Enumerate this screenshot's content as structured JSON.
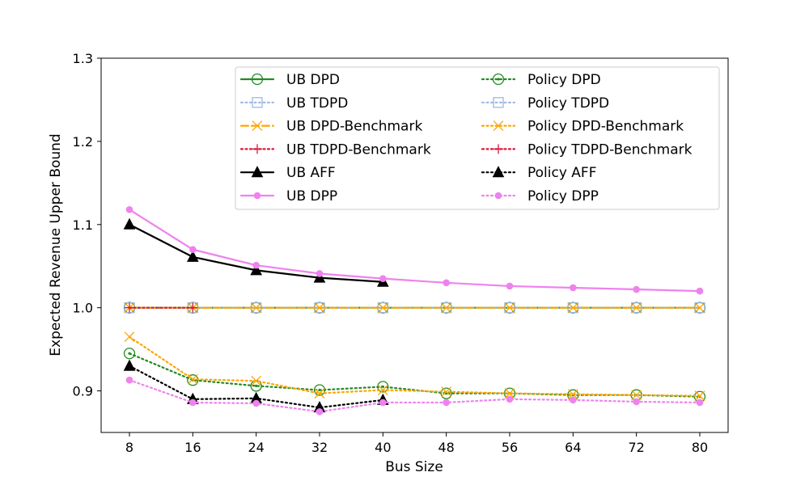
{
  "chart_data": {
    "type": "line",
    "xlabel": "Bus Size",
    "ylabel": "Expected Revenue Upper Bound",
    "x": [
      8,
      16,
      24,
      32,
      40,
      48,
      56,
      64,
      72,
      80
    ],
    "x_tick_labels": [
      "8",
      "16",
      "24",
      "32",
      "40",
      "48",
      "56",
      "64",
      "72",
      "80"
    ],
    "ylim": [
      0.85,
      1.3
    ],
    "y_ticks": [
      0.9,
      1.0,
      1.1,
      1.2,
      1.3
    ],
    "y_tick_labels": [
      "0.9",
      "1.0",
      "1.1",
      "1.2",
      "1.3"
    ],
    "grid": false,
    "legend_position": "upper-center",
    "legend_columns": 2,
    "series": [
      {
        "name": "UB DPD",
        "color": "#228b22",
        "linestyle": "solid",
        "marker": "circle-open",
        "values": [
          1.0,
          1.0,
          1.0,
          1.0,
          1.0,
          1.0,
          1.0,
          1.0,
          1.0,
          1.0
        ]
      },
      {
        "name": "UB TDPD",
        "color": "#9fb9e0",
        "linestyle": "dotted",
        "marker": "square-open",
        "values": [
          1.0,
          1.0,
          1.0,
          1.0,
          1.0,
          1.0,
          1.0,
          1.0,
          1.0,
          1.0
        ]
      },
      {
        "name": "UB DPD-Benchmark",
        "color": "#ffa500",
        "linestyle": "dashed",
        "marker": "x",
        "values": [
          1.0,
          1.0,
          1.0,
          1.0,
          1.0,
          1.0,
          1.0,
          1.0,
          1.0,
          1.0
        ]
      },
      {
        "name": "UB TDPD-Benchmark",
        "color": "#dc143c",
        "linestyle": "dotted",
        "marker": "plus",
        "values": [
          1.0,
          1.0,
          null,
          null,
          null,
          null,
          null,
          null,
          null,
          null
        ]
      },
      {
        "name": "UB AFF",
        "color": "#000000",
        "linestyle": "solid",
        "marker": "triangle-filled",
        "values": [
          1.1,
          1.061,
          1.045,
          1.036,
          1.031,
          null,
          null,
          null,
          null,
          null
        ]
      },
      {
        "name": "UB DPP",
        "color": "#ee82ee",
        "linestyle": "solid",
        "marker": "circle-filled",
        "values": [
          1.118,
          1.07,
          1.051,
          1.041,
          1.035,
          1.03,
          1.026,
          1.024,
          1.022,
          1.02
        ]
      },
      {
        "name": "Policy DPD",
        "color": "#228b22",
        "linestyle": "dotted",
        "marker": "circle-dot",
        "values": [
          0.945,
          0.913,
          0.906,
          0.901,
          0.905,
          0.897,
          0.897,
          0.895,
          0.895,
          0.893
        ]
      },
      {
        "name": "Policy TDPD",
        "color": "#9fb9e0",
        "linestyle": "dotted",
        "marker": "square-open",
        "values": [
          null,
          null,
          null,
          null,
          null,
          null,
          null,
          null,
          null,
          null
        ]
      },
      {
        "name": "Policy DPD-Benchmark",
        "color": "#ffa500",
        "linestyle": "dotted",
        "marker": "x",
        "values": [
          0.965,
          0.914,
          0.912,
          0.897,
          0.901,
          0.899,
          0.897,
          0.896,
          0.895,
          0.894
        ]
      },
      {
        "name": "Policy TDPD-Benchmark",
        "color": "#dc143c",
        "linestyle": "dotted",
        "marker": "plus",
        "values": [
          null,
          null,
          null,
          null,
          null,
          null,
          null,
          null,
          null,
          null
        ]
      },
      {
        "name": "Policy AFF",
        "color": "#000000",
        "linestyle": "dotted",
        "marker": "triangle-filled",
        "values": [
          0.93,
          0.89,
          0.891,
          0.88,
          0.889,
          null,
          null,
          null,
          null,
          null
        ]
      },
      {
        "name": "Policy DPP",
        "color": "#ee82ee",
        "linestyle": "dotted",
        "marker": "circle-filled",
        "values": [
          0.913,
          0.886,
          0.885,
          0.875,
          0.886,
          0.886,
          0.89,
          0.889,
          0.887,
          0.886
        ]
      }
    ]
  }
}
